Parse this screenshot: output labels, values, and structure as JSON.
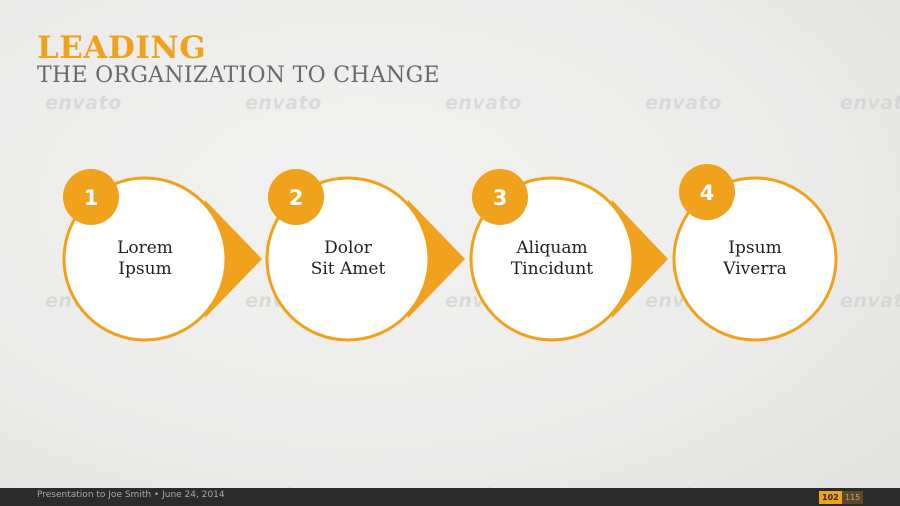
{
  "slide": {
    "title": "LEADING",
    "subtitle": "THE ORGANIZATION TO CHANGE"
  },
  "steps": [
    {
      "number": "1",
      "line1": "Lorem",
      "line2": "Ipsum"
    },
    {
      "number": "2",
      "line1": "Dolor",
      "line2": "Sit Amet"
    },
    {
      "number": "3",
      "line1": "Aliquam",
      "line2": "Tincidunt"
    },
    {
      "number": "4",
      "line1": "Ipsum",
      "line2": "Viverra"
    }
  ],
  "footer": {
    "text": "Presentation to Joe Smith • June 24, 2014",
    "page": "102",
    "total": "115"
  },
  "watermark": "envato",
  "colors": {
    "accent": "#f0a21c",
    "footer_bg": "#2b2b2b",
    "subtitle": "#6a6a6a"
  }
}
